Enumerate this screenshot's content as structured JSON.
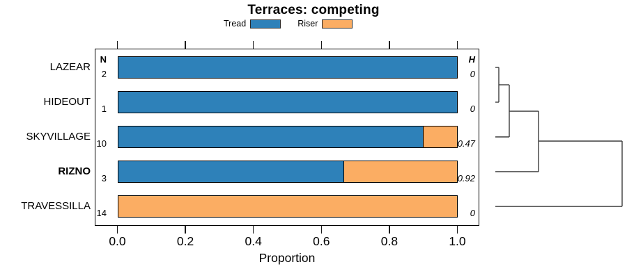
{
  "title": "Terraces: competing",
  "legend": {
    "items": [
      {
        "label": "Tread",
        "color": "#2e81b9"
      },
      {
        "label": "Riser",
        "color": "#fbad63"
      }
    ]
  },
  "columns": {
    "n_header": "N",
    "h_header": "H"
  },
  "chart_data": {
    "type": "bar",
    "orientation": "horizontal_stacked",
    "title": "Terraces: competing",
    "xlabel": "Proportion",
    "xlim": [
      0.0,
      1.0
    ],
    "xticks": [
      0.0,
      0.2,
      0.4,
      0.6,
      0.8,
      1.0
    ],
    "grid": false,
    "legend_position": "top",
    "categories": [
      "LAZEAR",
      "HIDEOUT",
      "SKYVILLAGE",
      "RIZNO",
      "TRAVESSILLA"
    ],
    "highlighted_category": "RIZNO",
    "series": [
      {
        "name": "Tread",
        "color": "#2e81b9",
        "values": [
          1.0,
          1.0,
          0.9,
          0.667,
          0.0
        ]
      },
      {
        "name": "Riser",
        "color": "#fbad63",
        "values": [
          0.0,
          0.0,
          0.1,
          0.333,
          1.0
        ]
      }
    ],
    "rows": [
      {
        "category": "LAZEAR",
        "n": "2",
        "tread": 1.0,
        "riser": 0.0,
        "h": "0"
      },
      {
        "category": "HIDEOUT",
        "n": "1",
        "tread": 1.0,
        "riser": 0.0,
        "h": "0"
      },
      {
        "category": "SKYVILLAGE",
        "n": "10",
        "tread": 0.9,
        "riser": 0.1,
        "h": "0.47"
      },
      {
        "category": "RIZNO",
        "n": "3",
        "tread": 0.667,
        "riser": 0.333,
        "h": "0.92"
      },
      {
        "category": "TRAVESSILLA",
        "n": "14",
        "tread": 0.0,
        "riser": 1.0,
        "h": "0"
      }
    ],
    "dendrogram": {
      "merge_order": [
        [
          "LAZEAR",
          "HIDEOUT"
        ],
        "SKYVILLAGE",
        "RIZNO",
        "TRAVESSILLA"
      ],
      "line_color": "#3c3c3c",
      "segments": [
        {
          "x1": 711,
          "y1": 97,
          "x2": 716,
          "y2": 97
        },
        {
          "x1": 711,
          "y1": 147,
          "x2": 716,
          "y2": 147
        },
        {
          "x1": 716,
          "y1": 97,
          "x2": 716,
          "y2": 147
        },
        {
          "x1": 716,
          "y1": 122,
          "x2": 731,
          "y2": 122
        },
        {
          "x1": 711,
          "y1": 197,
          "x2": 731,
          "y2": 197
        },
        {
          "x1": 731,
          "y1": 122,
          "x2": 731,
          "y2": 197
        },
        {
          "x1": 731,
          "y1": 160,
          "x2": 773,
          "y2": 160
        },
        {
          "x1": 711,
          "y1": 247,
          "x2": 773,
          "y2": 247
        },
        {
          "x1": 773,
          "y1": 160,
          "x2": 773,
          "y2": 247
        },
        {
          "x1": 773,
          "y1": 203,
          "x2": 893,
          "y2": 203
        },
        {
          "x1": 711,
          "y1": 297,
          "x2": 893,
          "y2": 297
        },
        {
          "x1": 893,
          "y1": 203,
          "x2": 893,
          "y2": 297
        }
      ]
    }
  }
}
